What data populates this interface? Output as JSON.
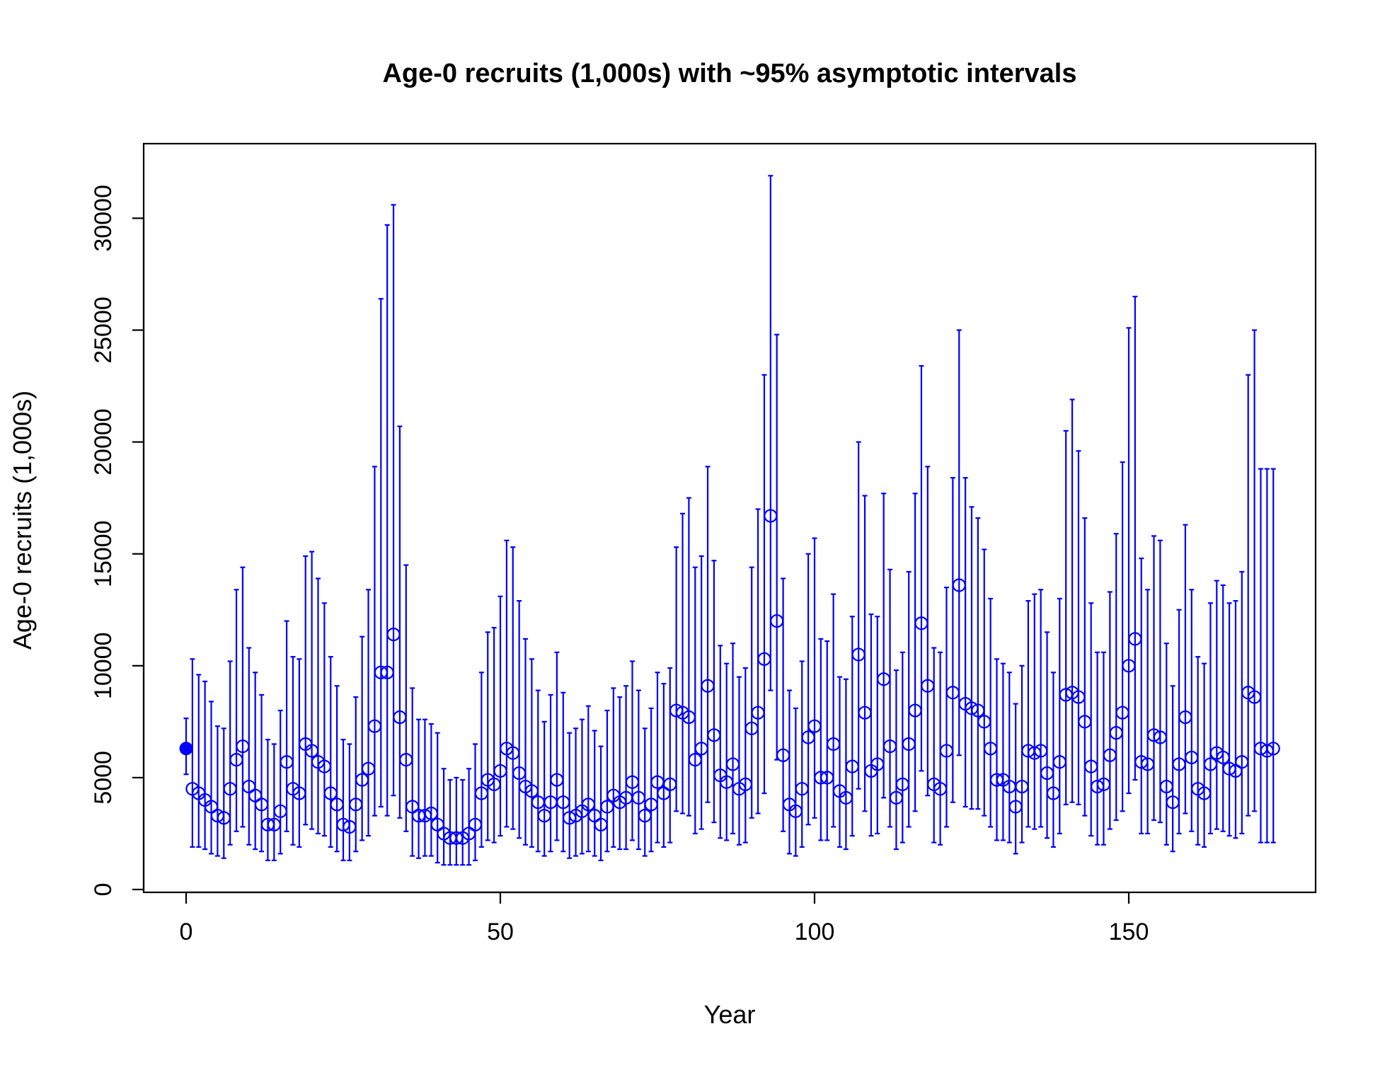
{
  "chart_data": {
    "type": "scatter",
    "title": "Age-0 recruits (1,000s) with ~95% asymptotic intervals",
    "xlabel": "Year",
    "ylabel": "Age-0 recruits (1,000s)",
    "xlim": [
      0,
      173
    ],
    "ylim": [
      0,
      32000
    ],
    "x_ticks": [
      "0",
      "50",
      "100",
      "150"
    ],
    "y_ticks": [
      "0",
      "5000",
      "10000",
      "15000",
      "20000",
      "25000",
      "30000"
    ],
    "grid": false,
    "legend": "none",
    "color": "#0000FF",
    "virgin_point": {
      "x": 0,
      "y": 6300,
      "low": 5150,
      "high": 7650
    },
    "series": [
      {
        "x": [
          1,
          2,
          3,
          4,
          5,
          6,
          7,
          8,
          9,
          10,
          11,
          12,
          13,
          14,
          15,
          16,
          17,
          18,
          19,
          20,
          21,
          22,
          23,
          24,
          25,
          26,
          27,
          28,
          29,
          30,
          31,
          32,
          33,
          34,
          35,
          36,
          37,
          38,
          39,
          40,
          41,
          42,
          43,
          44,
          45,
          46,
          47,
          48,
          49,
          50,
          51,
          52,
          53,
          54,
          55,
          56,
          57,
          58,
          59,
          60,
          61,
          62,
          63,
          64,
          65,
          66,
          67,
          68,
          69,
          70,
          71,
          72,
          73,
          74,
          75,
          76,
          77,
          78,
          79,
          80,
          81,
          82,
          83,
          84,
          85,
          86,
          87,
          88,
          89,
          90,
          91,
          92,
          93,
          94,
          95,
          96,
          97,
          98,
          99,
          100,
          101,
          102,
          103,
          104,
          105,
          106,
          107,
          108,
          109,
          110,
          111,
          112,
          113,
          114,
          115,
          116,
          117,
          118,
          119,
          120,
          121,
          122,
          123,
          124,
          125,
          126,
          127,
          128,
          129,
          130,
          131,
          132,
          133,
          134,
          135,
          136,
          137,
          138,
          139,
          140,
          141,
          142,
          143,
          144,
          145,
          146,
          147,
          148,
          149,
          150,
          151,
          152,
          153,
          154,
          155,
          156,
          157,
          158,
          159,
          160,
          161,
          162,
          163,
          164,
          165,
          166,
          167,
          168,
          169,
          170,
          171,
          172,
          173
        ],
        "y": [
          4500,
          4300,
          4000,
          3700,
          3300,
          3200,
          4500,
          5800,
          6400,
          4600,
          4200,
          3800,
          2900,
          2900,
          3500,
          5700,
          4500,
          4300,
          6500,
          6200,
          5700,
          5500,
          4300,
          3800,
          2900,
          2800,
          3800,
          4900,
          5400,
          7300,
          9700,
          9700,
          11400,
          7700,
          5800,
          3700,
          3300,
          3300,
          3400,
          2900,
          2500,
          2300,
          2300,
          2300,
          2500,
          2900,
          4300,
          4900,
          4700,
          5300,
          6300,
          6100,
          5200,
          4600,
          4400,
          3900,
          3300,
          3900,
          4900,
          3900,
          3200,
          3300,
          3500,
          3800,
          3300,
          2900,
          3700,
          4200,
          3900,
          4100,
          4800,
          4100,
          3300,
          3800,
          4800,
          4300,
          4700,
          8000,
          7900,
          7700,
          5800,
          6300,
          9100,
          6900,
          5100,
          4800,
          5600,
          4500,
          4700,
          7200,
          7900,
          10300,
          16700,
          12000,
          6000,
          3800,
          3500,
          4500,
          6800,
          7300,
          5000,
          5000,
          6500,
          4400,
          4100,
          5500,
          10500,
          7900,
          5300,
          5600,
          9400,
          6400,
          4100,
          4700,
          6500,
          8000,
          11900,
          9100,
          4700,
          4500,
          6200,
          8800,
          13600,
          8300,
          8100,
          8000,
          7500,
          6300,
          4900,
          4900,
          4600,
          3700,
          4600,
          6200,
          6100,
          6200,
          5200,
          4300,
          5700,
          8700,
          8800,
          8600,
          7500,
          5500,
          4600,
          4700,
          6000,
          7000,
          7900,
          10000,
          11200,
          5700,
          5600,
          6900,
          6800,
          4600,
          3900,
          5600,
          7700,
          5900,
          4500,
          4300,
          5600,
          6100,
          5900,
          5400,
          5300,
          5700,
          8800,
          8600,
          6300,
          6200,
          6300
        ],
        "low": [
          1900,
          1900,
          1800,
          1600,
          1500,
          1400,
          2000,
          2600,
          2800,
          2000,
          1800,
          1700,
          1300,
          1300,
          1600,
          2600,
          2000,
          1900,
          2900,
          2700,
          2500,
          2400,
          1900,
          1700,
          1300,
          1300,
          1700,
          2200,
          2400,
          3300,
          3700,
          3300,
          4200,
          3200,
          2600,
          1500,
          1400,
          1500,
          1500,
          1200,
          1100,
          1100,
          1100,
          1100,
          1100,
          1300,
          1900,
          2200,
          2100,
          2400,
          2800,
          2700,
          2300,
          2000,
          1900,
          1700,
          1500,
          1700,
          2200,
          1700,
          1400,
          1500,
          1600,
          1700,
          1500,
          1300,
          1700,
          1900,
          1800,
          1800,
          2200,
          1800,
          1500,
          1700,
          2100,
          1900,
          2100,
          3500,
          3400,
          3300,
          2500,
          2700,
          3900,
          3000,
          2300,
          2200,
          2500,
          2000,
          2100,
          3200,
          3400,
          4300,
          8900,
          5800,
          2600,
          1600,
          1500,
          1900,
          2900,
          3200,
          2200,
          2200,
          2800,
          1900,
          1800,
          2400,
          4500,
          3500,
          2400,
          2500,
          4100,
          2800,
          1800,
          2100,
          2800,
          3500,
          5300,
          4200,
          2100,
          2000,
          2800,
          3900,
          6000,
          3700,
          3600,
          3600,
          3300,
          2800,
          2200,
          2200,
          2100,
          1600,
          2100,
          2800,
          2700,
          2800,
          2300,
          1900,
          2500,
          3800,
          3900,
          3800,
          3300,
          2400,
          2000,
          2000,
          2700,
          3100,
          3500,
          4300,
          4900,
          2500,
          2500,
          3100,
          3000,
          2000,
          1700,
          2500,
          3400,
          2600,
          2000,
          1900,
          2500,
          2700,
          2600,
          2400,
          2300,
          2500,
          3300,
          3500,
          2100,
          2100,
          2100
        ],
        "high": [
          10300,
          9600,
          9300,
          8400,
          7300,
          7200,
          10200,
          13400,
          14400,
          10800,
          9700,
          8700,
          6700,
          6500,
          8000,
          12000,
          10400,
          10300,
          14900,
          15100,
          13900,
          12800,
          10400,
          9100,
          6700,
          6500,
          8600,
          11300,
          13400,
          18900,
          26400,
          29700,
          30600,
          20700,
          14500,
          9000,
          7600,
          7600,
          7400,
          7000,
          5400,
          4900,
          5000,
          4900,
          5400,
          6500,
          9700,
          11500,
          11700,
          13100,
          15600,
          15300,
          12900,
          11200,
          10300,
          8900,
          7500,
          8700,
          10600,
          8800,
          7000,
          7200,
          7600,
          8200,
          7100,
          6400,
          8000,
          9000,
          8600,
          9100,
          10200,
          8900,
          7200,
          8100,
          9700,
          9200,
          9900,
          15300,
          16800,
          17500,
          14400,
          14900,
          18900,
          14700,
          10900,
          10100,
          11000,
          9500,
          9900,
          14400,
          17000,
          23000,
          31900,
          24800,
          13900,
          8900,
          8100,
          10200,
          15000,
          15700,
          11200,
          11100,
          13200,
          9500,
          9400,
          12200,
          20000,
          17600,
          12300,
          12200,
          17700,
          14300,
          9800,
          10600,
          14200,
          17700,
          23400,
          18900,
          10800,
          10600,
          13500,
          18400,
          25000,
          18400,
          17100,
          16600,
          15200,
          13000,
          10300,
          10100,
          9700,
          8300,
          10000,
          12900,
          13200,
          13400,
          11500,
          9700,
          13000,
          20500,
          21900,
          19600,
          16600,
          12800,
          10600,
          10600,
          13300,
          15900,
          19100,
          25100,
          26500,
          14800,
          13400,
          15800,
          15600,
          11000,
          9100,
          12500,
          16300,
          13400,
          10400,
          10100,
          12800,
          13800,
          13600,
          12800,
          12900,
          14200,
          23000,
          25000,
          18800,
          18800,
          18800
        ]
      }
    ]
  }
}
